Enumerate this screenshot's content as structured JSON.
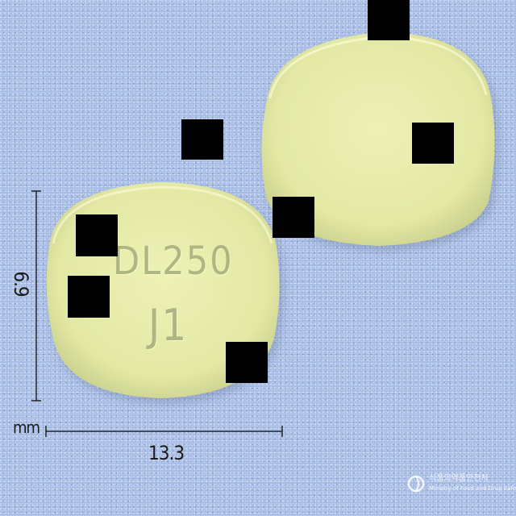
{
  "measurements": {
    "height_label": "6.9",
    "width_label": "13.3",
    "unit_label": "mm"
  },
  "tablet": {
    "imprint_line1": "DL250",
    "imprint_line2": "J1",
    "color": "#e8ecaa"
  },
  "background_color": "#a7bde6",
  "watermark": {
    "text_ko": "식품의약품안전처",
    "text_en": "Ministry of Food and Drug Safety"
  }
}
